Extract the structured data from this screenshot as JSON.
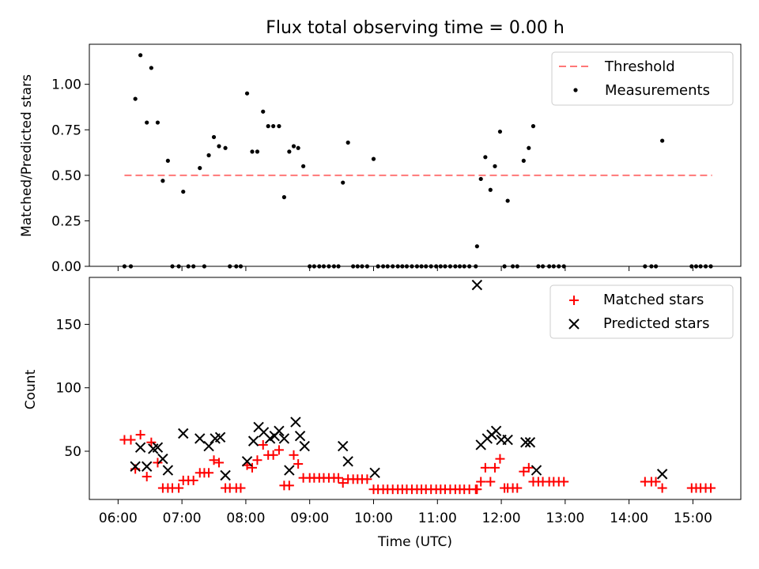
{
  "chart_data": [
    {
      "type": "scatter",
      "title": "Flux total observing time = 0.00 h",
      "xlabel": "",
      "ylabel": "Matched/Predicted stars",
      "xlim": [
        5.55,
        15.75
      ],
      "ylim": [
        0.0,
        1.22
      ],
      "yticks": [
        0.0,
        0.25,
        0.5,
        0.75,
        1.0
      ],
      "ytick_labels": [
        "0.00",
        "0.25",
        "0.50",
        "0.75",
        "1.00"
      ],
      "xticks": [
        6,
        7,
        8,
        9,
        10,
        11,
        12,
        13,
        14,
        15
      ],
      "legend_position": "top-right",
      "grid": false,
      "threshold": {
        "name": "Threshold",
        "value": 0.5,
        "x": [
          6.1,
          15.3
        ],
        "color": "#ff7777"
      },
      "series": [
        {
          "name": "Measurements",
          "color": "#000000",
          "points": [
            [
              6.1,
              0.0
            ],
            [
              6.2,
              0.0
            ],
            [
              6.27,
              0.92
            ],
            [
              6.35,
              1.16
            ],
            [
              6.45,
              0.79
            ],
            [
              6.52,
              1.09
            ],
            [
              6.62,
              0.79
            ],
            [
              6.7,
              0.47
            ],
            [
              6.78,
              0.58
            ],
            [
              6.85,
              0.0
            ],
            [
              6.95,
              0.0
            ],
            [
              7.02,
              0.41
            ],
            [
              7.1,
              0.0
            ],
            [
              7.18,
              0.0
            ],
            [
              7.28,
              0.54
            ],
            [
              7.35,
              0.0
            ],
            [
              7.42,
              0.61
            ],
            [
              7.5,
              0.71
            ],
            [
              7.58,
              0.66
            ],
            [
              7.68,
              0.65
            ],
            [
              7.75,
              0.0
            ],
            [
              7.85,
              0.0
            ],
            [
              7.92,
              0.0
            ],
            [
              8.02,
              0.95
            ],
            [
              8.1,
              0.63
            ],
            [
              8.18,
              0.63
            ],
            [
              8.27,
              0.85
            ],
            [
              8.35,
              0.77
            ],
            [
              8.43,
              0.77
            ],
            [
              8.52,
              0.77
            ],
            [
              8.6,
              0.38
            ],
            [
              8.68,
              0.63
            ],
            [
              8.75,
              0.66
            ],
            [
              8.82,
              0.65
            ],
            [
              8.9,
              0.55
            ],
            [
              9.0,
              0.0
            ],
            [
              9.07,
              0.0
            ],
            [
              9.15,
              0.0
            ],
            [
              9.22,
              0.0
            ],
            [
              9.3,
              0.0
            ],
            [
              9.38,
              0.0
            ],
            [
              9.45,
              0.0
            ],
            [
              9.52,
              0.46
            ],
            [
              9.6,
              0.68
            ],
            [
              9.68,
              0.0
            ],
            [
              9.75,
              0.0
            ],
            [
              9.82,
              0.0
            ],
            [
              9.9,
              0.0
            ],
            [
              10.0,
              0.59
            ],
            [
              10.07,
              0.0
            ],
            [
              10.15,
              0.0
            ],
            [
              10.22,
              0.0
            ],
            [
              10.3,
              0.0
            ],
            [
              10.38,
              0.0
            ],
            [
              10.45,
              0.0
            ],
            [
              10.52,
              0.0
            ],
            [
              10.6,
              0.0
            ],
            [
              10.68,
              0.0
            ],
            [
              10.75,
              0.0
            ],
            [
              10.82,
              0.0
            ],
            [
              10.9,
              0.0
            ],
            [
              10.98,
              0.0
            ],
            [
              11.05,
              0.0
            ],
            [
              11.12,
              0.0
            ],
            [
              11.2,
              0.0
            ],
            [
              11.28,
              0.0
            ],
            [
              11.35,
              0.0
            ],
            [
              11.42,
              0.0
            ],
            [
              11.5,
              0.0
            ],
            [
              11.6,
              0.0
            ],
            [
              11.62,
              0.11
            ],
            [
              11.68,
              0.48
            ],
            [
              11.75,
              0.6
            ],
            [
              11.83,
              0.42
            ],
            [
              11.9,
              0.55
            ],
            [
              11.98,
              0.74
            ],
            [
              12.05,
              0.0
            ],
            [
              12.1,
              0.36
            ],
            [
              12.18,
              0.0
            ],
            [
              12.25,
              0.0
            ],
            [
              12.35,
              0.58
            ],
            [
              12.43,
              0.65
            ],
            [
              12.5,
              0.77
            ],
            [
              12.58,
              0.0
            ],
            [
              12.65,
              0.0
            ],
            [
              12.75,
              0.0
            ],
            [
              12.82,
              0.0
            ],
            [
              12.9,
              0.0
            ],
            [
              12.98,
              0.0
            ],
            [
              14.25,
              0.0
            ],
            [
              14.35,
              0.0
            ],
            [
              14.42,
              0.0
            ],
            [
              14.52,
              0.69
            ],
            [
              14.98,
              0.0
            ],
            [
              15.05,
              0.0
            ],
            [
              15.12,
              0.0
            ],
            [
              15.2,
              0.0
            ],
            [
              15.28,
              0.0
            ]
          ]
        }
      ]
    },
    {
      "type": "scatter",
      "title": "",
      "xlabel": "Time (UTC)",
      "ylabel": "Count",
      "xlim": [
        5.55,
        15.75
      ],
      "ylim": [
        12,
        187
      ],
      "yticks": [
        50,
        100,
        150
      ],
      "ytick_labels": [
        "50",
        "100",
        "150"
      ],
      "xticks": [
        6,
        7,
        8,
        9,
        10,
        11,
        12,
        13,
        14,
        15
      ],
      "xtick_labels": [
        "06:00",
        "07:00",
        "08:00",
        "09:00",
        "10:00",
        "11:00",
        "12:00",
        "13:00",
        "14:00",
        "15:00"
      ],
      "legend_position": "top-right",
      "grid": false,
      "series": [
        {
          "name": "Matched stars",
          "marker": "plus",
          "color": "#ff0000",
          "points": [
            [
              6.1,
              59
            ],
            [
              6.2,
              59
            ],
            [
              6.27,
              36
            ],
            [
              6.35,
              63
            ],
            [
              6.45,
              30
            ],
            [
              6.52,
              57
            ],
            [
              6.62,
              41
            ],
            [
              6.7,
              21
            ],
            [
              6.78,
              21
            ],
            [
              6.85,
              21
            ],
            [
              6.95,
              21
            ],
            [
              7.02,
              27
            ],
            [
              7.1,
              27
            ],
            [
              7.18,
              27
            ],
            [
              7.28,
              33
            ],
            [
              7.35,
              33
            ],
            [
              7.42,
              33
            ],
            [
              7.5,
              43
            ],
            [
              7.58,
              41
            ],
            [
              7.68,
              21
            ],
            [
              7.75,
              21
            ],
            [
              7.85,
              21
            ],
            [
              7.92,
              21
            ],
            [
              8.02,
              39
            ],
            [
              8.1,
              37
            ],
            [
              8.18,
              43
            ],
            [
              8.27,
              55
            ],
            [
              8.35,
              47
            ],
            [
              8.43,
              47
            ],
            [
              8.52,
              51
            ],
            [
              8.6,
              23
            ],
            [
              8.68,
              23
            ],
            [
              8.75,
              47
            ],
            [
              8.82,
              40
            ],
            [
              8.9,
              29
            ],
            [
              9.0,
              29
            ],
            [
              9.07,
              29
            ],
            [
              9.15,
              29
            ],
            [
              9.22,
              29
            ],
            [
              9.3,
              29
            ],
            [
              9.38,
              29
            ],
            [
              9.45,
              29
            ],
            [
              9.52,
              25
            ],
            [
              9.6,
              28
            ],
            [
              9.68,
              28
            ],
            [
              9.75,
              28
            ],
            [
              9.82,
              28
            ],
            [
              9.9,
              28
            ],
            [
              10.0,
              20
            ],
            [
              10.07,
              20
            ],
            [
              10.15,
              20
            ],
            [
              10.22,
              20
            ],
            [
              10.3,
              20
            ],
            [
              10.38,
              20
            ],
            [
              10.45,
              20
            ],
            [
              10.52,
              20
            ],
            [
              10.6,
              20
            ],
            [
              10.68,
              20
            ],
            [
              10.75,
              20
            ],
            [
              10.82,
              20
            ],
            [
              10.9,
              20
            ],
            [
              10.98,
              20
            ],
            [
              11.05,
              20
            ],
            [
              11.12,
              20
            ],
            [
              11.2,
              20
            ],
            [
              11.28,
              20
            ],
            [
              11.35,
              20
            ],
            [
              11.42,
              20
            ],
            [
              11.5,
              20
            ],
            [
              11.6,
              20
            ],
            [
              11.62,
              20
            ],
            [
              11.68,
              26
            ],
            [
              11.75,
              37
            ],
            [
              11.83,
              26
            ],
            [
              11.9,
              37
            ],
            [
              11.98,
              44
            ],
            [
              12.05,
              21
            ],
            [
              12.1,
              21
            ],
            [
              12.18,
              21
            ],
            [
              12.25,
              21
            ],
            [
              12.35,
              34
            ],
            [
              12.43,
              37
            ],
            [
              12.5,
              26
            ],
            [
              12.58,
              26
            ],
            [
              12.65,
              26
            ],
            [
              12.75,
              26
            ],
            [
              12.82,
              26
            ],
            [
              12.9,
              26
            ],
            [
              12.98,
              26
            ],
            [
              14.25,
              26
            ],
            [
              14.35,
              26
            ],
            [
              14.42,
              26
            ],
            [
              14.52,
              21
            ],
            [
              14.98,
              21
            ],
            [
              15.05,
              21
            ],
            [
              15.12,
              21
            ],
            [
              15.2,
              21
            ],
            [
              15.28,
              21
            ]
          ]
        },
        {
          "name": "Predicted stars",
          "marker": "x",
          "color": "#000000",
          "points": [
            [
              6.27,
              38
            ],
            [
              6.35,
              53
            ],
            [
              6.45,
              38
            ],
            [
              6.55,
              52
            ],
            [
              6.62,
              53
            ],
            [
              6.7,
              44
            ],
            [
              6.78,
              35
            ],
            [
              7.02,
              64
            ],
            [
              7.28,
              60
            ],
            [
              7.42,
              54
            ],
            [
              7.52,
              60
            ],
            [
              7.6,
              61
            ],
            [
              7.68,
              31
            ],
            [
              8.02,
              42
            ],
            [
              8.12,
              58
            ],
            [
              8.2,
              69
            ],
            [
              8.28,
              65
            ],
            [
              8.38,
              60
            ],
            [
              8.45,
              62
            ],
            [
              8.52,
              66
            ],
            [
              8.6,
              60
            ],
            [
              8.68,
              35
            ],
            [
              8.78,
              73
            ],
            [
              8.85,
              62
            ],
            [
              8.92,
              54
            ],
            [
              9.52,
              54
            ],
            [
              9.6,
              42
            ],
            [
              10.02,
              33
            ],
            [
              11.62,
              181
            ],
            [
              11.68,
              55
            ],
            [
              11.78,
              60
            ],
            [
              11.85,
              63
            ],
            [
              11.92,
              66
            ],
            [
              12.0,
              59
            ],
            [
              12.1,
              59
            ],
            [
              12.38,
              57
            ],
            [
              12.45,
              57
            ],
            [
              12.55,
              35
            ],
            [
              14.52,
              32
            ]
          ]
        }
      ]
    }
  ]
}
